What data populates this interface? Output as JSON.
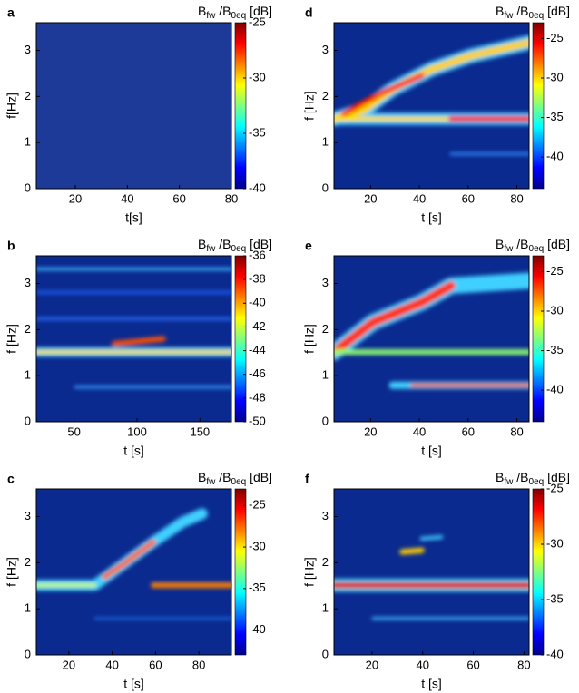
{
  "chart_data": [
    {
      "type": "heatmap",
      "panel_label": "a",
      "xlabel": "t[s]",
      "ylabel": "f[Hz]",
      "xlim": [
        5,
        80
      ],
      "xticks": [
        20,
        40,
        60,
        80
      ],
      "ylim": [
        0,
        3.6
      ],
      "yticks": [
        0,
        1,
        2,
        3
      ],
      "colormap": "jet",
      "colorbar": {
        "label": [
          "B",
          "fw",
          " /B",
          "0eq",
          " [dB]"
        ],
        "clim": [
          -40,
          -25
        ],
        "ticks": [
          -25,
          -30,
          -35,
          -40
        ]
      }
    },
    {
      "type": "heatmap",
      "panel_label": "d",
      "xlabel": "t [s]",
      "ylabel": "f [Hz]",
      "xlim": [
        5,
        85
      ],
      "xticks": [
        20,
        40,
        60,
        80
      ],
      "ylim": [
        0,
        3.6
      ],
      "yticks": [
        0,
        1,
        2,
        3
      ],
      "colormap": "jet",
      "colorbar": {
        "label": [
          "B",
          "fw",
          " /B",
          "0eq",
          " [dB]"
        ],
        "clim": [
          -44,
          -23
        ],
        "ticks": [
          -25,
          -30,
          -35,
          -40
        ]
      }
    },
    {
      "type": "heatmap",
      "panel_label": "b",
      "xlabel": "t [s]",
      "ylabel": "f [Hz]",
      "xlim": [
        20,
        175
      ],
      "xticks": [
        50,
        100,
        150
      ],
      "ylim": [
        0,
        3.6
      ],
      "yticks": [
        0,
        1,
        2,
        3
      ],
      "colormap": "jet",
      "colorbar": {
        "label": [
          "B",
          "fw",
          " /B",
          "0eq",
          " [dB]"
        ],
        "clim": [
          -50,
          -36
        ],
        "ticks": [
          -36,
          -38,
          -40,
          -42,
          -44,
          -46,
          -48,
          -50
        ]
      }
    },
    {
      "type": "heatmap",
      "panel_label": "e",
      "xlabel": "t [s]",
      "ylabel": "f [Hz]",
      "xlim": [
        5,
        85
      ],
      "xticks": [
        20,
        40,
        60,
        80
      ],
      "ylim": [
        0,
        3.6
      ],
      "yticks": [
        0,
        1,
        2,
        3
      ],
      "colormap": "jet",
      "colorbar": {
        "label": [
          "B",
          "fw",
          " /B",
          "0eq",
          " [dB]"
        ],
        "clim": [
          -44,
          -23
        ],
        "ticks": [
          -25,
          -30,
          -35,
          -40
        ]
      }
    },
    {
      "type": "heatmap",
      "panel_label": "c",
      "xlabel": "t [s]",
      "ylabel": "f [Hz]",
      "xlim": [
        5,
        95
      ],
      "xticks": [
        20,
        40,
        60,
        80
      ],
      "ylim": [
        0,
        3.6
      ],
      "yticks": [
        0,
        1,
        2,
        3
      ],
      "colormap": "jet",
      "colorbar": {
        "label": [
          "B",
          "fw",
          " /B",
          "0eq",
          " [dB]"
        ],
        "clim": [
          -43,
          -23
        ],
        "ticks": [
          -25,
          -30,
          -35,
          -40
        ]
      }
    },
    {
      "type": "heatmap",
      "panel_label": "f",
      "xlabel": "t [s]",
      "ylabel": "f [Hz]",
      "xlim": [
        5,
        82
      ],
      "xticks": [
        20,
        40,
        60,
        80
      ],
      "ylim": [
        0,
        3.6
      ],
      "yticks": [
        0,
        1,
        2,
        3
      ],
      "colormap": "jet",
      "colorbar": {
        "label": [
          "B",
          "fw",
          " /B",
          "0eq",
          " [dB]"
        ],
        "clim": [
          -40,
          -25
        ],
        "ticks": [
          -25,
          -30,
          -35,
          -40
        ]
      }
    }
  ]
}
